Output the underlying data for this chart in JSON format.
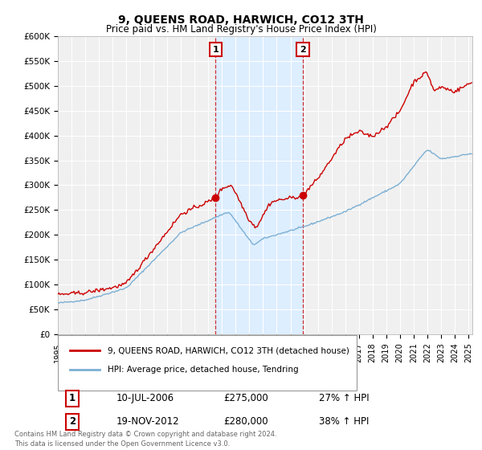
{
  "title": "9, QUEENS ROAD, HARWICH, CO12 3TH",
  "subtitle": "Price paid vs. HM Land Registry's House Price Index (HPI)",
  "ylabel_ticks": [
    "£0",
    "£50K",
    "£100K",
    "£150K",
    "£200K",
    "£250K",
    "£300K",
    "£350K",
    "£400K",
    "£450K",
    "£500K",
    "£550K",
    "£600K"
  ],
  "ylim": [
    0,
    600000
  ],
  "xlim_start": 1995.0,
  "xlim_end": 2025.3,
  "sale1_x": 2006.53,
  "sale1_y": 275000,
  "sale1_label": "10-JUL-2006",
  "sale1_price": "£275,000",
  "sale1_hpi": "27% ↑ HPI",
  "sale2_x": 2012.9,
  "sale2_y": 280000,
  "sale2_label": "19-NOV-2012",
  "sale2_price": "£280,000",
  "sale2_hpi": "38% ↑ HPI",
  "red_color": "#cc0000",
  "blue_color": "#7bafd4",
  "shade_color": "#ddeeff",
  "legend1": "9, QUEENS ROAD, HARWICH, CO12 3TH (detached house)",
  "legend2": "HPI: Average price, detached house, Tendring",
  "footnote": "Contains HM Land Registry data © Crown copyright and database right 2024.\nThis data is licensed under the Open Government Licence v3.0.",
  "bg_color": "#f0f0f0",
  "grid_color": "#ffffff"
}
